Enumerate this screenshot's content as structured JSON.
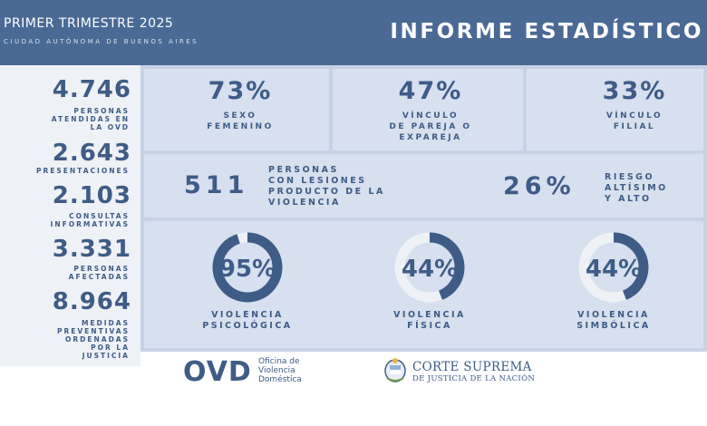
{
  "header": {
    "period": "PRIMER TRIMESTRE 2025",
    "location": "CIUDAD AUTÓNOMA DE BUENOS AIRES",
    "report_title": "INFORME ESTADÍSTICO"
  },
  "left_stats": [
    {
      "value": "4.746",
      "label": [
        "PERSONAS",
        "ATENDIDAS EN",
        "LA OVD"
      ]
    },
    {
      "value": "2.643",
      "label": [
        "PRESENTACIONES"
      ]
    },
    {
      "value": "2.103",
      "label": [
        "CONSULTAS",
        "INFORMATIVAS"
      ]
    },
    {
      "value": "3.331",
      "label": [
        "PERSONAS",
        "AFECTADAS"
      ]
    },
    {
      "value": "8.964",
      "label": [
        "MEDIDAS",
        "PREVENTIVAS",
        "ORDENADAS",
        "POR LA",
        "JUSTICIA"
      ]
    }
  ],
  "top_stats": [
    {
      "value": "73%",
      "label": [
        "SEXO",
        "FEMENINO"
      ]
    },
    {
      "value": "47%",
      "label": [
        "VÍNCULO",
        "DE PAREJA O",
        "EXPAREJA"
      ]
    },
    {
      "value": "33%",
      "label": [
        "VÍNCULO",
        "FILIAL"
      ]
    }
  ],
  "injuries": {
    "value": "511",
    "label": [
      "PERSONAS",
      "CON LESIONES",
      "PRODUCTO DE LA",
      "VIOLENCIA"
    ]
  },
  "risk": {
    "value": "26%",
    "label": [
      "RIESGO",
      "ALTÍSIMO",
      "Y ALTO"
    ]
  },
  "rings": [
    {
      "value": "95%",
      "fraction": 0.95,
      "label": [
        "VIOLENCIA",
        "PSICOLÓGICA"
      ]
    },
    {
      "value": "44%",
      "fraction": 0.44,
      "label": [
        "VIOLENCIA",
        "FÍSICA"
      ]
    },
    {
      "value": "44%",
      "fraction": 0.44,
      "label": [
        "VIOLENCIA",
        "SIMBÓLICA"
      ]
    }
  ],
  "colors": {
    "ring_fill": "#3e5c86",
    "ring_track": "#eef1f6"
  },
  "footer": {
    "ovd_logo": "OVD",
    "ovd_name": [
      "Oficina de",
      "Violencia",
      "Doméstica"
    ],
    "court_name": "CORTE SUPREMA",
    "court_sub": "DE JUSTICIA DE LA NACIÓN"
  }
}
